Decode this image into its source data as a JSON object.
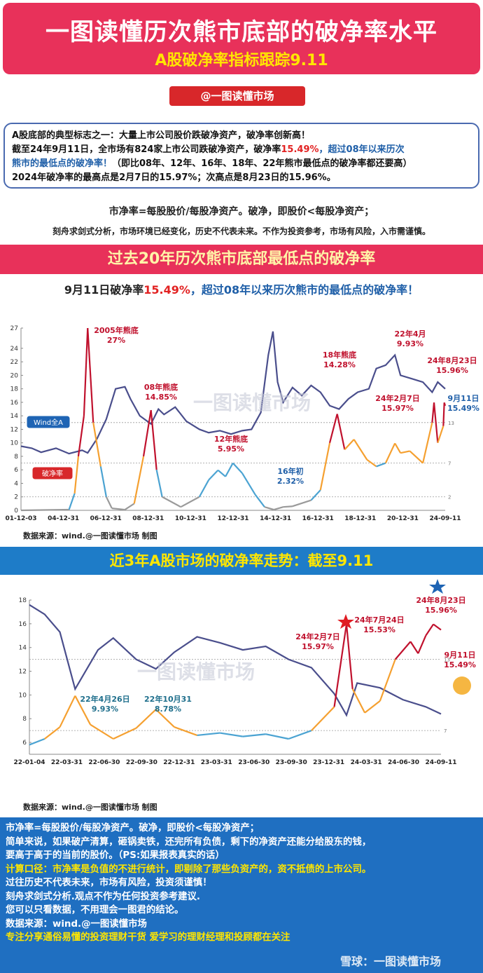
{
  "header": {
    "title": "一图读懂历次熊市底部的破净率水平",
    "subtitle": "A股破净率指标跟踪9.11"
  },
  "tag": "@一图读懂市场",
  "intro": {
    "l1": "A股底部的典型标志之一：大量上市公司股价跌破净资产，破净率创新高！",
    "l2a": "截至24年9月11日，全市场有824家上市公司跌破净资产，破净率",
    "l2b": "15.49%",
    "l2c": "，超过08年以来历次",
    "l3a": "熊市的最低点的破净率！",
    "l3b": "（即比08年、12年、16年、18年、22年熊市最低点的破净率都还要高）",
    "l4": "2024年破净率的最高点是2月7日的15.97%；次高点是8月23日的15.96%。"
  },
  "definition": "市净率=每股股价/每股净资产。破净，即股价<每股净资产；",
  "disclaimer": "刻舟求剑式分析，市场环境已经变化，历史不代表未来。不作为投资参考，市场有风险，入市需谨慎。",
  "band1": "过去20年历次熊市底部最低点的破净率",
  "chart1_title": {
    "a": "9月11日破净率",
    "b": "15.49%",
    "c": "，超过08年以来历次熊市的最低点的破净率！"
  },
  "band2": "近3年A股市场的破净率走势：截至9.11",
  "source": "数据来源：wind.@一图读懂市场 制图",
  "watermark": "一图读懂市场",
  "chart_data": [
    {
      "type": "line",
      "title": "过去20年历次熊市底部最低点的破净率",
      "ylim": [
        0,
        27
      ],
      "yticks": [
        0,
        2,
        4,
        6,
        8,
        10,
        12,
        14,
        16,
        18,
        20,
        22,
        24,
        27
      ],
      "xticks": [
        "01-12-03",
        "04-12-31",
        "06-12-31",
        "08-12-31",
        "10-12-31",
        "12-12-31",
        "14-12-31",
        "16-12-31",
        "18-12-31",
        "20-12-31",
        "24-09-11"
      ],
      "ref_lines": [
        13,
        7,
        2
      ],
      "legend": [
        "Wind全A",
        "破净率"
      ],
      "colors": {
        "pe_line": "#4a4e8c",
        "pb_above13": "#c0112d",
        "pb_7to13": "#f5a030",
        "pb_2to7": "#4ba3d2",
        "pb_below2": "#9a9a9a"
      },
      "series": [
        {
          "name": "Wind全A",
          "x": [
            2001.92,
            2002.5,
            2003.0,
            2003.8,
            2004.5,
            2005.2,
            2005.5,
            2006.0,
            2006.5,
            2007.0,
            2007.5,
            2007.8,
            2008.3,
            2008.9,
            2009.3,
            2009.6,
            2010.2,
            2010.8,
            2011.5,
            2012.0,
            2012.6,
            2013.2,
            2013.8,
            2014.3,
            2014.8,
            2015.2,
            2015.45,
            2015.7,
            2016.0,
            2016.5,
            2017.0,
            2017.5,
            2018.0,
            2018.5,
            2019.0,
            2019.5,
            2020.0,
            2020.6,
            2021.0,
            2021.5,
            2022.0,
            2022.3,
            2022.9,
            2023.5,
            2024.0,
            2024.3,
            2024.7
          ],
          "y": [
            9.5,
            9.2,
            8.6,
            9.2,
            8.4,
            8.9,
            8.5,
            10.6,
            13.5,
            18.0,
            18.3,
            16.5,
            14.0,
            12.8,
            15.0,
            14.2,
            15.3,
            13.2,
            12.0,
            11.5,
            11.8,
            11.3,
            11.8,
            12.0,
            14.5,
            23.0,
            26.5,
            19.0,
            16.0,
            18.2,
            17.0,
            18.5,
            17.5,
            15.5,
            15.0,
            16.5,
            17.5,
            18.0,
            21.0,
            21.5,
            23.0,
            20.0,
            19.5,
            19.0,
            17.5,
            19.0,
            18.0
          ]
        },
        {
          "name": "破净率",
          "x": [
            2001.92,
            2004.5,
            2004.8,
            2005.0,
            2005.3,
            2005.5,
            2005.8,
            2006.2,
            2006.5,
            2006.8,
            2007.5,
            2008.0,
            2008.5,
            2008.9,
            2009.2,
            2009.5,
            2010.5,
            2011.5,
            2012.0,
            2012.5,
            2012.9,
            2013.3,
            2013.8,
            2014.5,
            2015.0,
            2015.5,
            2016.0,
            2016.5,
            2017.5,
            2018.0,
            2018.5,
            2018.9,
            2019.3,
            2019.8,
            2020.5,
            2021.0,
            2021.5,
            2022.0,
            2022.3,
            2022.8,
            2023.5,
            2024.0,
            2024.1,
            2024.3,
            2024.6,
            2024.65,
            2024.7
          ],
          "y": [
            0.0,
            0.1,
            2.5,
            8.0,
            14.0,
            27.0,
            13.0,
            6.5,
            2.0,
            0.3,
            0.1,
            1.0,
            8.0,
            14.85,
            6.0,
            2.0,
            0.5,
            2.0,
            4.5,
            5.95,
            5.0,
            7.0,
            5.5,
            2.32,
            0.5,
            0.1,
            0.5,
            0.6,
            1.5,
            3.0,
            10.0,
            14.28,
            9.0,
            10.5,
            7.5,
            6.5,
            7.0,
            9.93,
            8.5,
            8.78,
            7.0,
            13.0,
            15.97,
            10.0,
            12.5,
            15.96,
            15.49
          ]
        }
      ],
      "annotations": [
        {
          "text": "2005年熊底",
          "value": "27%"
        },
        {
          "text": "08年熊底",
          "value": "14.85%"
        },
        {
          "text": "12年熊底",
          "value": "5.95%"
        },
        {
          "text": "16年初",
          "value": "2.32%"
        },
        {
          "text": "18年熊底",
          "value": "14.28%"
        },
        {
          "text": "22年4月",
          "value": "9.93%"
        },
        {
          "text": "24年2月7日",
          "value": "15.97%"
        },
        {
          "text": "24年8月23日",
          "value": "15.96%"
        },
        {
          "text": "9月11日",
          "value": "15.49%"
        }
      ]
    },
    {
      "type": "line",
      "title": "近3年A股市场的破净率走势：截至9.11",
      "ylim": [
        5,
        18
      ],
      "yticks": [
        6,
        8,
        10,
        12,
        14,
        16,
        18
      ],
      "xticks": [
        "22-01-04",
        "22-03-31",
        "22-06-30",
        "22-09-30",
        "22-12-31",
        "23-03-31",
        "23-06-30",
        "23-09-30",
        "23-12-31",
        "24-03-31",
        "24-06-30",
        "24-09-11"
      ],
      "ref_lines": [
        13,
        7
      ],
      "series": [
        {
          "name": "Wind全A",
          "x": [
            2022.0,
            2022.1,
            2022.2,
            2022.3,
            2022.45,
            2022.55,
            2022.7,
            2022.83,
            2022.95,
            2023.1,
            2023.25,
            2023.4,
            2023.55,
            2023.7,
            2023.85,
            2024.0,
            2024.08,
            2024.15,
            2024.3,
            2024.45,
            2024.6,
            2024.7
          ],
          "y": [
            17.6,
            16.8,
            15.3,
            10.5,
            13.8,
            14.8,
            13.0,
            12.2,
            13.6,
            14.9,
            14.4,
            13.8,
            14.1,
            13.0,
            12.3,
            10.1,
            8.3,
            11.0,
            10.6,
            9.6,
            9.0,
            8.4
          ]
        },
        {
          "name": "破净率",
          "x": [
            2022.0,
            2022.1,
            2022.2,
            2022.3,
            2022.4,
            2022.55,
            2022.7,
            2022.83,
            2022.95,
            2023.1,
            2023.25,
            2023.4,
            2023.55,
            2023.7,
            2023.85,
            2024.0,
            2024.08,
            2024.12,
            2024.2,
            2024.3,
            2024.4,
            2024.5,
            2024.55,
            2024.6,
            2024.65,
            2024.7
          ],
          "y": [
            5.8,
            6.3,
            7.3,
            9.93,
            7.5,
            6.3,
            7.2,
            8.78,
            7.3,
            6.6,
            6.8,
            6.5,
            6.7,
            6.3,
            7.0,
            9.0,
            15.97,
            10.5,
            8.5,
            9.5,
            13.0,
            14.5,
            13.5,
            15.0,
            15.96,
            15.49
          ]
        }
      ],
      "annotations": [
        {
          "text": "22年4月26日",
          "value": "9.93%"
        },
        {
          "text": "22年10月31",
          "value": "8.78%"
        },
        {
          "text": "24年2月7日",
          "value": "15.97%"
        },
        {
          "text": "24年7月24日",
          "value": "15.53%"
        },
        {
          "text": "24年8月23日",
          "value": "15.96%"
        },
        {
          "text": "9月11日",
          "value": "15.49%"
        }
      ]
    }
  ],
  "footer": {
    "l1": "市净率=每股股价/每股净资产。破净，即股价<每股净资产；",
    "l2": "简单来说，如果破产清算，砸锅卖铁，还完所有负债，剩下的净资产还能分给股东的钱，",
    "l3": "要高于高于的当前的股价。（PS:如果报表真实的话）",
    "l4": "计算口径：市净率是负值的不进行统计，即剔除了那些负资产的，资不抵债的上市公司。",
    "l5": "过往历史不代表未来，市场有风险，投资须谨慎！",
    "l6": "刻舟求剑式分析.观点不作为任何投资参考建议.",
    "l7": "您可以只看数据，不用理会一图君的结论。",
    "l8": "数据来源：wind.@一图读懂市场",
    "l9": "专注分享通俗易懂的投资理财干货    爱学习的理财经理和投顾都在关注"
  },
  "footer_watermark": "雪球：一图读懂市场"
}
